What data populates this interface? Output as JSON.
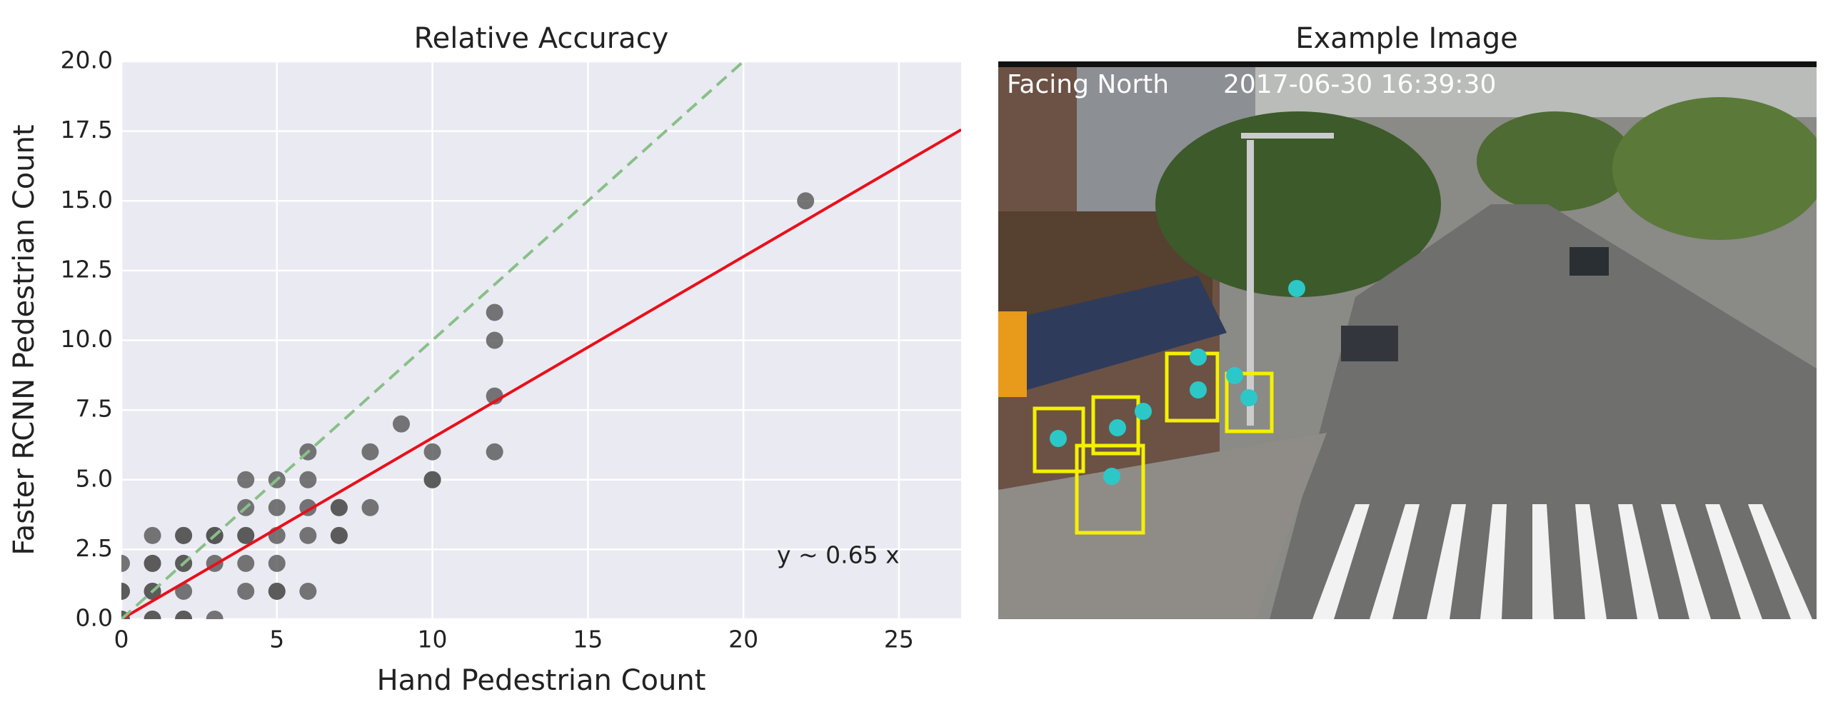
{
  "chart_data": {
    "type": "scatter",
    "title": "Relative Accuracy",
    "x_label": "Hand Pedestrian Count",
    "y_label": "Faster RCNN Pedestrian Count",
    "x": [
      0,
      0,
      0,
      0,
      0,
      1,
      1,
      1,
      1,
      1,
      1,
      1,
      2,
      2,
      2,
      2,
      2,
      2,
      2,
      3,
      3,
      3,
      3,
      3,
      4,
      4,
      4,
      4,
      4,
      4,
      5,
      5,
      5,
      5,
      5,
      5,
      6,
      6,
      6,
      6,
      6,
      7,
      7,
      7,
      7,
      8,
      8,
      9,
      10,
      10,
      10,
      12,
      12,
      12,
      12,
      22
    ],
    "y": [
      0,
      0,
      1,
      1,
      2,
      0,
      1,
      1,
      2,
      2,
      3,
      0,
      0,
      1,
      2,
      2,
      3,
      3,
      0,
      2,
      3,
      3,
      0,
      3,
      1,
      2,
      3,
      3,
      4,
      5,
      1,
      1,
      2,
      3,
      4,
      5,
      1,
      3,
      4,
      5,
      6,
      3,
      3,
      4,
      4,
      4,
      6,
      7,
      5,
      5,
      6,
      6,
      8,
      10,
      11,
      15
    ],
    "color": "#555555",
    "lines": [
      {
        "slope": 0.65,
        "color": "#e8101a",
        "style": "solid"
      },
      {
        "slope": 1,
        "color": "#88c088",
        "style": "dashed"
      }
    ],
    "annotation": "y ~ 0.65 x",
    "xlim": [
      0,
      27
    ],
    "ylim": [
      0,
      20
    ],
    "xticks": [
      0,
      5,
      10,
      15,
      20,
      25
    ],
    "yticks": [
      {
        "value": 0,
        "label": "0.0"
      },
      2.5,
      {
        "value": 5,
        "label": "5.0"
      },
      7.5,
      {
        "value": 10,
        "label": "10.0"
      },
      12.5,
      {
        "value": 15,
        "label": "15.0"
      },
      17.5,
      {
        "value": 20,
        "label": "20.0"
      }
    ],
    "grid": true
  },
  "image_panel": {
    "title": "Example Image",
    "overlay_left": "Facing North",
    "overlay_right": "2017-06-30 16:39:30"
  }
}
